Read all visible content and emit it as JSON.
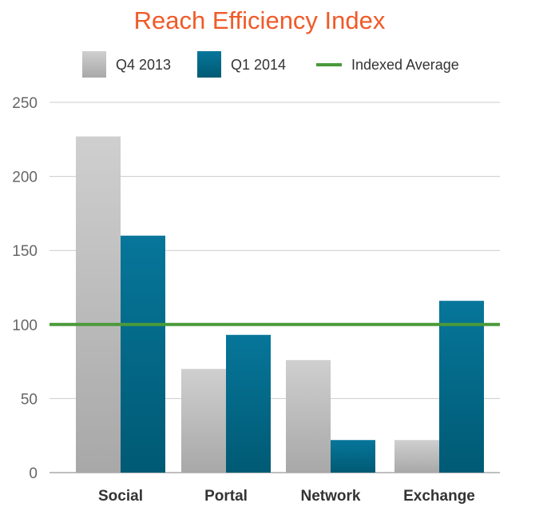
{
  "chart_data": {
    "type": "bar",
    "title": "Reach Efficiency Index",
    "xlabel": "",
    "ylabel": "",
    "categories": [
      "Social",
      "Portal",
      "Network",
      "Exchange"
    ],
    "series": [
      {
        "name": "Q4 2013",
        "values": [
          227,
          70,
          76,
          22
        ],
        "color": "#c2c2c2"
      },
      {
        "name": "Q1 2014",
        "values": [
          160,
          93,
          22,
          116
        ],
        "color": "#006b8a"
      }
    ],
    "reference_line": {
      "name": "Indexed Average",
      "value": 100,
      "color": "#4a9a3a"
    },
    "ylim": [
      0,
      250
    ],
    "yticks": [
      0,
      50,
      100,
      150,
      200,
      250
    ],
    "grid": true,
    "legend_position": "top",
    "colors": {
      "title": "#f05a28",
      "grid": "#cccccc",
      "axis": "#aaaaaa"
    }
  }
}
